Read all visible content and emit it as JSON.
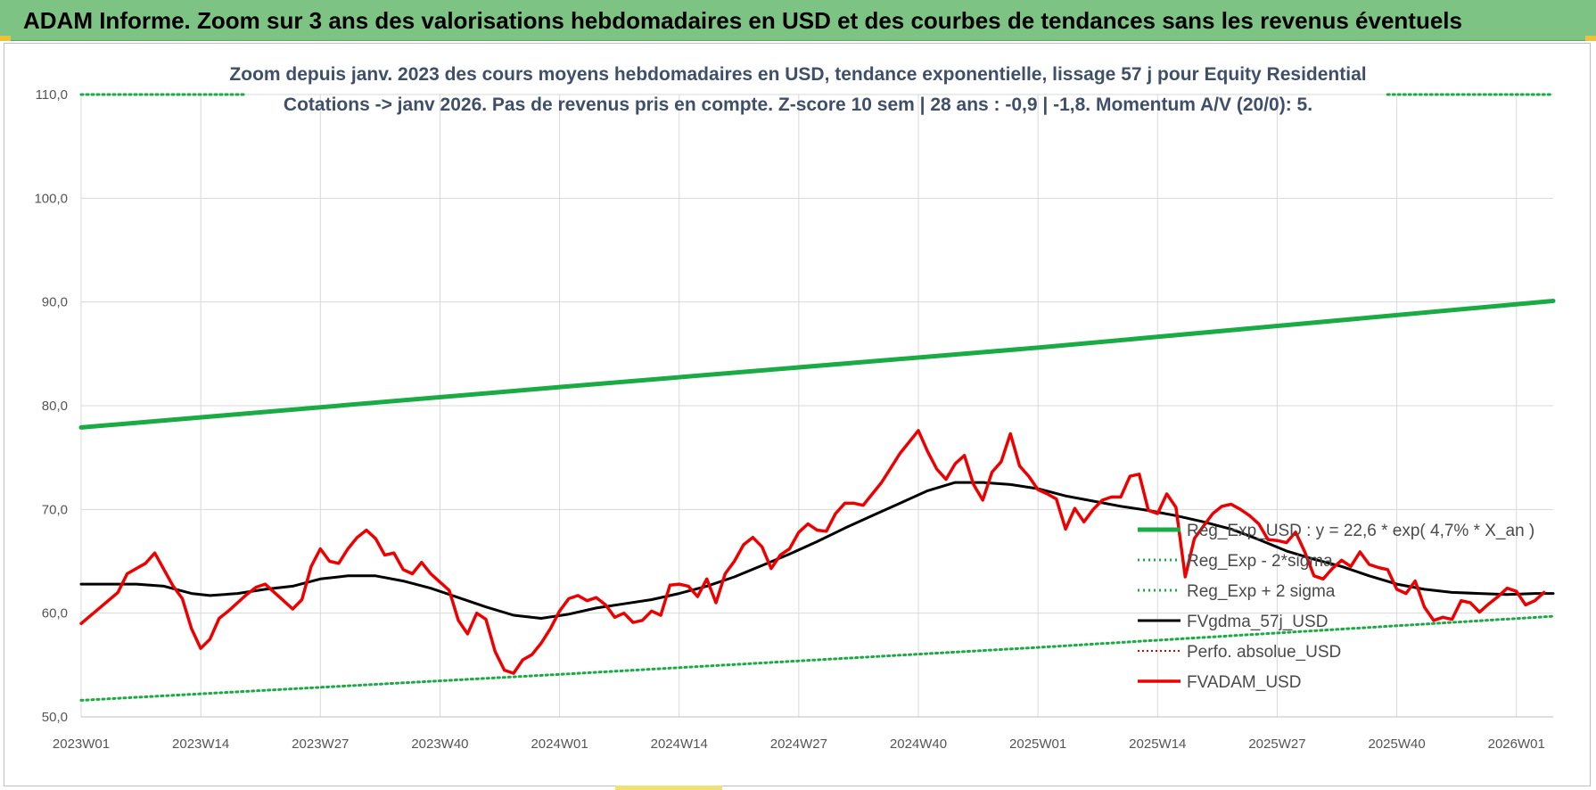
{
  "banner": {
    "title": "ADAM Informe. Zoom sur 3 ans des valorisations hebdomadaires en USD et des courbes de tendances sans les revenus éventuels"
  },
  "colors": {
    "banner_bg": "#7dc383",
    "reg_exp": "#1aab44",
    "sigma": "#1aab44",
    "fvgdma": "#000000",
    "perfo": "#e00000",
    "fvadam": "#ee0000",
    "subtitle_text": "#3f4f6b",
    "grid": "#d9d9d9"
  },
  "chart_data": {
    "type": "line",
    "title": "Zoom depuis janv. 2023 des cours moyens hebdomadaires en USD, tendance exponentielle, lissage 57 j pour Equity Residential",
    "subtitle": "Cotations -> janv 2026. Pas de revenus pris en compte. Z-score 10 sem | 28 ans : -0,9 | -1,8. Momentum A/V (20/0): 5.",
    "xlabel": "",
    "ylabel": "",
    "ylim": [
      50,
      110
    ],
    "y_ticks": [
      "50,0",
      "60,0",
      "70,0",
      "80,0",
      "90,0",
      "100,0",
      "110,0"
    ],
    "x_ticks": [
      "2023W01",
      "2023W14",
      "2023W27",
      "2023W40",
      "2024W01",
      "2024W14",
      "2024W27",
      "2024W40",
      "2025W01",
      "2025W14",
      "2025W27",
      "2025W40",
      "2026W01"
    ],
    "x_tick_weeks": [
      0,
      13,
      26,
      39,
      52,
      65,
      78,
      91,
      104,
      117,
      130,
      143,
      156
    ],
    "x_range_weeks": [
      0,
      160
    ],
    "grid": "vertical and horizontal",
    "legend_position": "bottom-right",
    "series": [
      {
        "name": "Reg_Exp_USD : y = 22,6 * exp( 4,7% * X_an )",
        "style": "thick-solid",
        "points": [
          [
            0,
            77.9
          ],
          [
            52,
            81.8
          ],
          [
            104,
            85.6
          ],
          [
            160,
            90.1
          ]
        ]
      },
      {
        "name": "Reg_Exp - 2*sigma",
        "style": "dotted",
        "points": [
          [
            0,
            51.6
          ],
          [
            52,
            54.1
          ],
          [
            104,
            56.7
          ],
          [
            160,
            59.7
          ]
        ]
      },
      {
        "name": "Reg_Exp + 2 sigma",
        "style": "dotted",
        "points": [
          [
            0,
            110.0
          ],
          [
            18,
            110.0
          ],
          [
            142,
            110.0
          ],
          [
            160,
            110.0
          ]
        ],
        "visible_ranges": [
          [
            0,
            18
          ],
          [
            142,
            160
          ]
        ]
      },
      {
        "name": "FVgdma_57j_USD",
        "style": "solid",
        "points": [
          [
            0,
            62.8
          ],
          [
            3,
            62.8
          ],
          [
            6,
            62.8
          ],
          [
            9,
            62.6
          ],
          [
            12,
            61.9
          ],
          [
            14,
            61.7
          ],
          [
            17,
            61.9
          ],
          [
            20,
            62.3
          ],
          [
            23,
            62.6
          ],
          [
            26,
            63.3
          ],
          [
            29,
            63.6
          ],
          [
            32,
            63.6
          ],
          [
            35,
            63.1
          ],
          [
            38,
            62.4
          ],
          [
            41,
            61.5
          ],
          [
            44,
            60.6
          ],
          [
            47,
            59.8
          ],
          [
            50,
            59.5
          ],
          [
            53,
            59.9
          ],
          [
            56,
            60.5
          ],
          [
            59,
            60.9
          ],
          [
            62,
            61.3
          ],
          [
            65,
            61.9
          ],
          [
            68,
            62.6
          ],
          [
            71,
            63.5
          ],
          [
            74,
            64.6
          ],
          [
            77,
            65.7
          ],
          [
            80,
            66.9
          ],
          [
            83,
            68.2
          ],
          [
            86,
            69.4
          ],
          [
            89,
            70.6
          ],
          [
            92,
            71.8
          ],
          [
            95,
            72.6
          ],
          [
            98,
            72.6
          ],
          [
            101,
            72.4
          ],
          [
            104,
            72.0
          ],
          [
            107,
            71.3
          ],
          [
            110,
            70.8
          ],
          [
            113,
            70.3
          ],
          [
            116,
            69.9
          ],
          [
            119,
            69.4
          ],
          [
            122,
            68.8
          ],
          [
            125,
            68.1
          ],
          [
            128,
            67.1
          ],
          [
            131,
            66.0
          ],
          [
            134,
            65.2
          ],
          [
            137,
            64.5
          ],
          [
            140,
            63.6
          ],
          [
            143,
            62.8
          ],
          [
            146,
            62.3
          ],
          [
            149,
            62.0
          ],
          [
            152,
            61.9
          ],
          [
            155,
            61.8
          ],
          [
            158,
            61.9
          ],
          [
            160,
            61.9
          ]
        ]
      },
      {
        "name": "Perfo. absolue_USD",
        "style": "dotted",
        "points": []
      },
      {
        "name": "FVADAM_USD",
        "style": "solid",
        "points": [
          [
            0,
            59.0
          ],
          [
            2,
            60.5
          ],
          [
            4,
            62.0
          ],
          [
            5,
            63.8
          ],
          [
            7,
            64.8
          ],
          [
            8,
            65.8
          ],
          [
            9,
            64.2
          ],
          [
            10,
            62.6
          ],
          [
            11,
            61.4
          ],
          [
            12,
            58.5
          ],
          [
            13,
            56.6
          ],
          [
            14,
            57.5
          ],
          [
            15,
            59.5
          ],
          [
            16,
            60.2
          ],
          [
            17,
            61.0
          ],
          [
            18,
            61.8
          ],
          [
            19,
            62.5
          ],
          [
            20,
            62.8
          ],
          [
            21,
            62.0
          ],
          [
            22,
            61.2
          ],
          [
            23,
            60.4
          ],
          [
            24,
            61.3
          ],
          [
            25,
            64.5
          ],
          [
            26,
            66.2
          ],
          [
            27,
            65.0
          ],
          [
            28,
            64.8
          ],
          [
            29,
            66.2
          ],
          [
            30,
            67.3
          ],
          [
            31,
            68.0
          ],
          [
            32,
            67.2
          ],
          [
            33,
            65.6
          ],
          [
            34,
            65.8
          ],
          [
            35,
            64.2
          ],
          [
            36,
            63.8
          ],
          [
            37,
            64.9
          ],
          [
            38,
            63.8
          ],
          [
            39,
            63.0
          ],
          [
            40,
            62.2
          ],
          [
            41,
            59.3
          ],
          [
            42,
            58.0
          ],
          [
            43,
            60.0
          ],
          [
            44,
            59.4
          ],
          [
            45,
            56.3
          ],
          [
            46,
            54.5
          ],
          [
            47,
            54.2
          ],
          [
            48,
            55.5
          ],
          [
            49,
            56.0
          ],
          [
            50,
            57.1
          ],
          [
            51,
            58.5
          ],
          [
            52,
            60.2
          ],
          [
            53,
            61.4
          ],
          [
            54,
            61.7
          ],
          [
            55,
            61.2
          ],
          [
            56,
            61.5
          ],
          [
            57,
            60.8
          ],
          [
            58,
            59.6
          ],
          [
            59,
            60.0
          ],
          [
            60,
            59.1
          ],
          [
            61,
            59.3
          ],
          [
            62,
            60.2
          ],
          [
            63,
            59.8
          ],
          [
            64,
            62.7
          ],
          [
            65,
            62.8
          ],
          [
            66,
            62.6
          ],
          [
            67,
            61.6
          ],
          [
            68,
            63.3
          ],
          [
            69,
            61.0
          ],
          [
            70,
            63.8
          ],
          [
            71,
            65.0
          ],
          [
            72,
            66.6
          ],
          [
            73,
            67.3
          ],
          [
            74,
            66.4
          ],
          [
            75,
            64.3
          ],
          [
            76,
            65.6
          ],
          [
            77,
            66.2
          ],
          [
            78,
            67.8
          ],
          [
            79,
            68.6
          ],
          [
            80,
            68.0
          ],
          [
            81,
            67.9
          ],
          [
            82,
            69.6
          ],
          [
            83,
            70.6
          ],
          [
            84,
            70.6
          ],
          [
            85,
            70.4
          ],
          [
            86,
            71.5
          ],
          [
            87,
            72.6
          ],
          [
            88,
            74.0
          ],
          [
            89,
            75.4
          ],
          [
            90,
            76.5
          ],
          [
            91,
            77.6
          ],
          [
            92,
            75.6
          ],
          [
            93,
            73.9
          ],
          [
            94,
            72.9
          ],
          [
            95,
            74.4
          ],
          [
            96,
            75.2
          ],
          [
            97,
            72.4
          ],
          [
            98,
            70.9
          ],
          [
            99,
            73.6
          ],
          [
            100,
            74.6
          ],
          [
            101,
            77.3
          ],
          [
            102,
            74.2
          ],
          [
            103,
            73.2
          ],
          [
            104,
            71.9
          ],
          [
            105,
            71.5
          ],
          [
            106,
            71.0
          ],
          [
            107,
            68.1
          ],
          [
            108,
            70.1
          ],
          [
            109,
            68.8
          ],
          [
            110,
            70.0
          ],
          [
            111,
            70.9
          ],
          [
            112,
            71.2
          ],
          [
            113,
            71.2
          ],
          [
            114,
            73.2
          ],
          [
            115,
            73.4
          ],
          [
            116,
            69.9
          ],
          [
            117,
            69.6
          ],
          [
            118,
            71.5
          ],
          [
            119,
            70.2
          ],
          [
            120,
            63.5
          ],
          [
            121,
            67.2
          ],
          [
            122,
            68.4
          ],
          [
            123,
            69.6
          ],
          [
            124,
            70.3
          ],
          [
            125,
            70.5
          ],
          [
            126,
            70.0
          ],
          [
            127,
            69.4
          ],
          [
            128,
            68.6
          ],
          [
            129,
            67.1
          ],
          [
            130,
            67.0
          ],
          [
            131,
            66.8
          ],
          [
            132,
            67.8
          ],
          [
            133,
            65.9
          ],
          [
            134,
            63.6
          ],
          [
            135,
            63.3
          ],
          [
            136,
            64.3
          ],
          [
            137,
            65.1
          ],
          [
            138,
            64.5
          ],
          [
            139,
            65.9
          ],
          [
            140,
            64.7
          ],
          [
            141,
            64.4
          ],
          [
            142,
            64.2
          ],
          [
            143,
            62.3
          ],
          [
            144,
            61.9
          ],
          [
            145,
            63.1
          ],
          [
            146,
            60.6
          ],
          [
            147,
            59.3
          ],
          [
            148,
            59.6
          ],
          [
            149,
            59.4
          ],
          [
            150,
            61.2
          ],
          [
            151,
            61.0
          ],
          [
            152,
            60.1
          ],
          [
            153,
            60.9
          ],
          [
            154,
            61.6
          ],
          [
            155,
            62.4
          ],
          [
            156,
            62.1
          ],
          [
            157,
            60.8
          ],
          [
            158,
            61.2
          ],
          [
            159,
            62.0
          ]
        ]
      }
    ]
  }
}
